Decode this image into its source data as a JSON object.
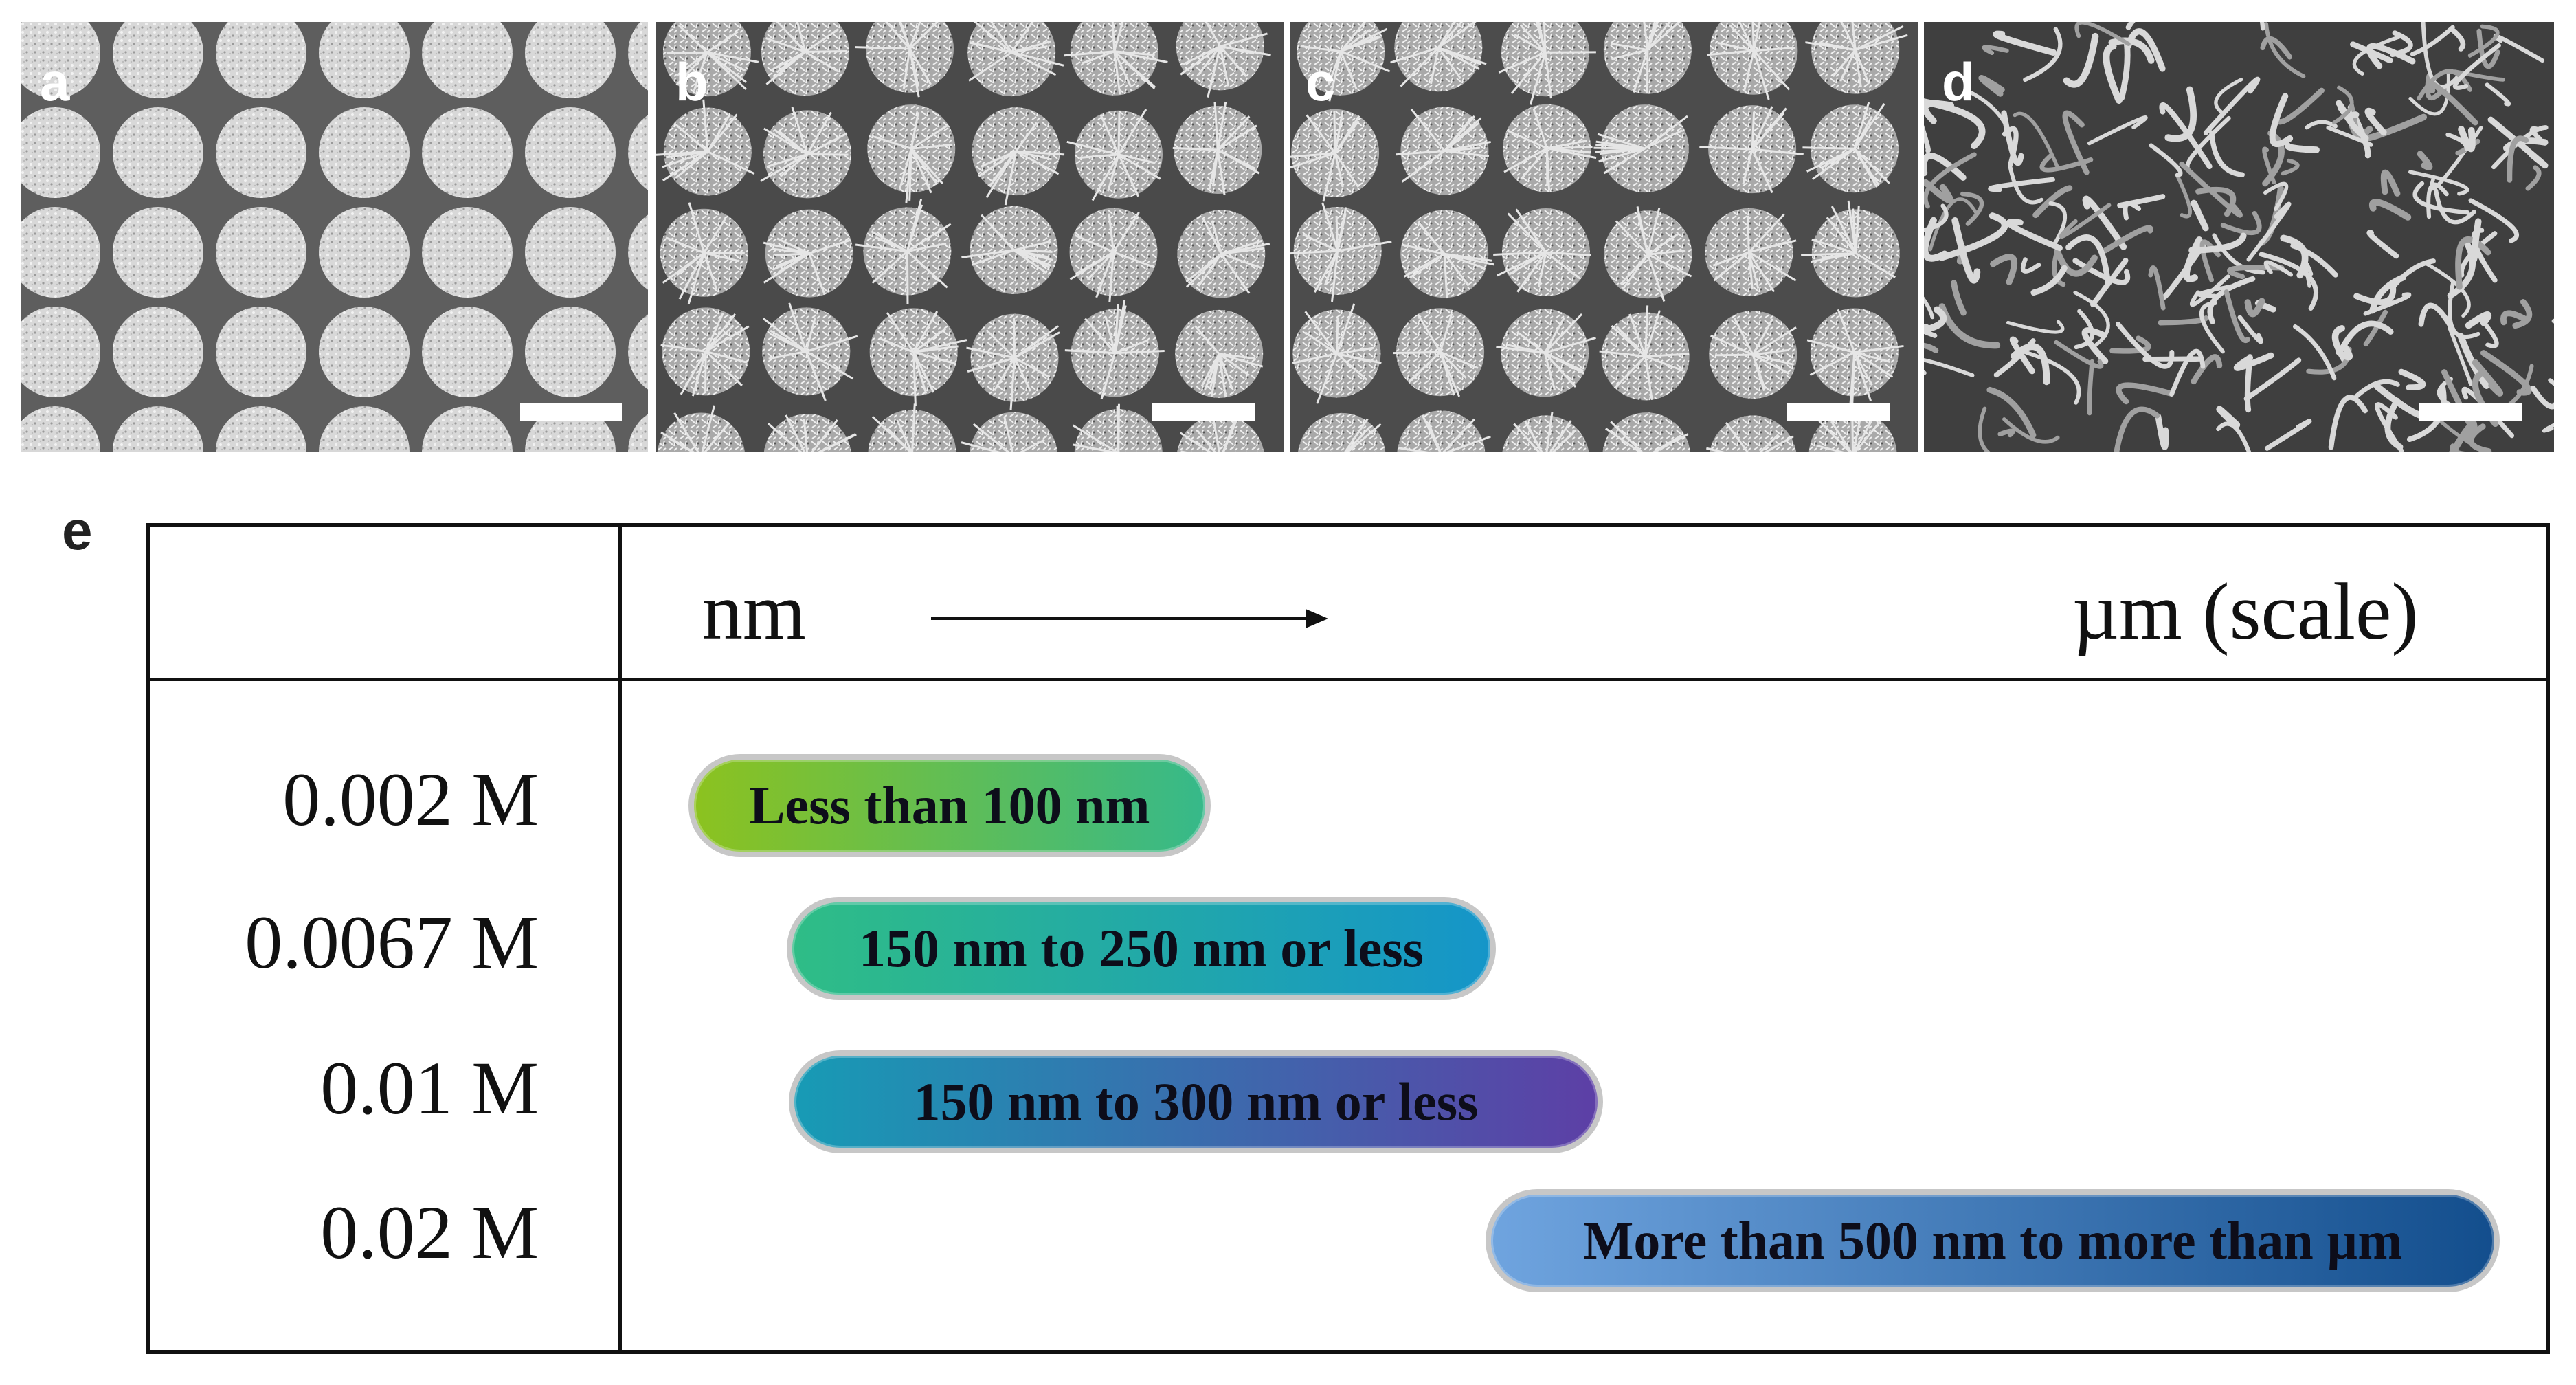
{
  "panels": [
    {
      "letter": "a",
      "texture": "dots"
    },
    {
      "letter": "b",
      "texture": "flowers"
    },
    {
      "letter": "c",
      "texture": "flowers"
    },
    {
      "letter": "d",
      "texture": "network"
    }
  ],
  "table": {
    "label": "e",
    "header_start": "nm",
    "header_end": "µm (scale)",
    "rows": [
      {
        "concentration": "0.002 M",
        "range": "Less than 100 nm",
        "gradient": [
          "#8cc21f",
          "#36b98a"
        ]
      },
      {
        "concentration": "0.0067 M",
        "range": "150 nm to 250 nm or less",
        "gradient": [
          "#2fbd86",
          "#1595c9"
        ]
      },
      {
        "concentration": "0.01 M",
        "range": "150 nm to 300 nm or less",
        "gradient": [
          "#179bb5",
          "#5d3fa6"
        ]
      },
      {
        "concentration": "0.02 M",
        "range": "More than 500 nm to more than µm",
        "gradient": [
          "#6fa4df",
          "#134e8d"
        ]
      }
    ]
  }
}
